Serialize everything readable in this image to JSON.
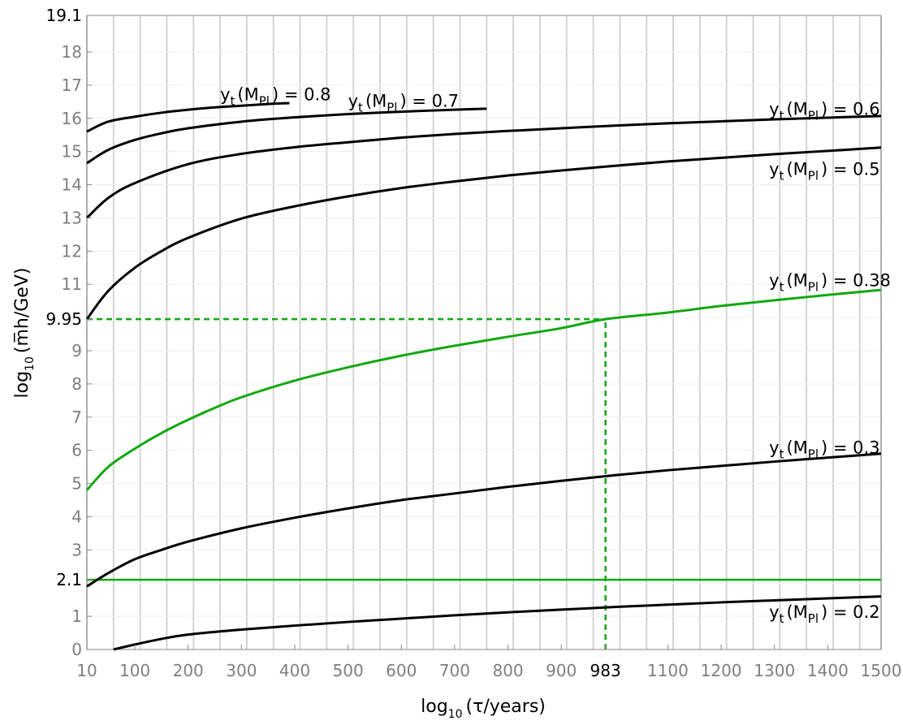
{
  "chart_data": {
    "type": "line",
    "xlabel": {
      "main": "log",
      "sub": "10",
      "rest": "(τ/years)"
    },
    "ylabel": {
      "main": "log",
      "sub": "10",
      "rest": "(m̅h/GeV)"
    },
    "xlim": [
      10,
      1500
    ],
    "ylim": [
      0,
      19.1
    ],
    "x_ticks": [
      {
        "value": 10,
        "label": "10"
      },
      {
        "value": 100,
        "label": "100"
      },
      {
        "value": 200,
        "label": "200"
      },
      {
        "value": 300,
        "label": "300"
      },
      {
        "value": 400,
        "label": "400"
      },
      {
        "value": 500,
        "label": "500"
      },
      {
        "value": 600,
        "label": "600"
      },
      {
        "value": 700,
        "label": "700"
      },
      {
        "value": 800,
        "label": "800"
      },
      {
        "value": 900,
        "label": "900"
      },
      {
        "value": 983,
        "label": "983",
        "highlight": true
      },
      {
        "value": 1100,
        "label": "1100"
      },
      {
        "value": 1200,
        "label": "1200"
      },
      {
        "value": 1300,
        "label": "1300"
      },
      {
        "value": 1400,
        "label": "1400"
      },
      {
        "value": 1500,
        "label": "1500"
      }
    ],
    "y_ticks": [
      {
        "value": 0,
        "label": "0"
      },
      {
        "value": 1,
        "label": "1"
      },
      {
        "value": 2.1,
        "label": "2.1",
        "highlight": true
      },
      {
        "value": 3,
        "label": "3"
      },
      {
        "value": 4,
        "label": "4"
      },
      {
        "value": 5,
        "label": "5"
      },
      {
        "value": 6,
        "label": "6"
      },
      {
        "value": 7,
        "label": "7"
      },
      {
        "value": 8,
        "label": "8"
      },
      {
        "value": 9,
        "label": "9"
      },
      {
        "value": 9.95,
        "label": "9.95",
        "highlight": true
      },
      {
        "value": 11,
        "label": "11"
      },
      {
        "value": 12,
        "label": "12"
      },
      {
        "value": 13,
        "label": "13"
      },
      {
        "value": 14,
        "label": "14"
      },
      {
        "value": 15,
        "label": "15"
      },
      {
        "value": 16,
        "label": "16"
      },
      {
        "value": 17,
        "label": "17"
      },
      {
        "value": 18,
        "label": "18"
      },
      {
        "value": 19.1,
        "label": "19.1",
        "highlight": true
      }
    ],
    "vertical_grid_x": [
      10,
      60,
      110,
      160,
      210,
      260,
      310,
      360,
      410,
      460,
      510,
      560,
      610,
      660,
      710,
      760,
      810,
      860,
      910,
      960,
      1010,
      1060,
      1110,
      1160,
      1210,
      1260,
      1310,
      1360,
      1410,
      1460,
      1500
    ],
    "horizontal_grid_y": [
      1,
      2,
      3,
      4,
      5,
      6,
      7,
      8,
      9,
      10,
      11,
      12,
      13,
      14,
      15,
      16,
      17,
      18
    ],
    "grid": true,
    "colors": {
      "black": "#000000",
      "green": "#11a811",
      "grid": "#d4d4d4",
      "tick": "#7f7f7f"
    },
    "series": [
      {
        "name": "y_t(M_Pl) = 0.8",
        "label": {
          "pre": "y",
          "sub1": "t",
          "mid": "(M",
          "sub2": "Pl",
          "post": ") = 0.8"
        },
        "label_anchor": [
          260,
          16.55
        ],
        "color": "#000000",
        "x": [
          10,
          50,
          100,
          150,
          200,
          250,
          300,
          350,
          390
        ],
        "y": [
          15.6,
          15.9,
          16.05,
          16.17,
          16.26,
          16.33,
          16.38,
          16.43,
          16.46
        ]
      },
      {
        "name": "y_t(M_Pl) = 0.7",
        "label": {
          "pre": "y",
          "sub1": "t",
          "mid": "(M",
          "sub2": "Pl",
          "post": ") = 0.7"
        },
        "label_anchor": [
          500,
          16.35
        ],
        "color": "#000000",
        "x": [
          10,
          50,
          100,
          150,
          200,
          300,
          400,
          500,
          600,
          700,
          760
        ],
        "y": [
          14.65,
          15.05,
          15.35,
          15.55,
          15.7,
          15.9,
          16.03,
          16.13,
          16.2,
          16.26,
          16.29
        ]
      },
      {
        "name": "y_t(M_Pl) = 0.6",
        "label": {
          "pre": "y",
          "sub1": "t",
          "mid": "(M",
          "sub2": "Pl",
          "post": ") = 0.6"
        },
        "label_anchor": [
          1290,
          16.1
        ],
        "color": "#000000",
        "x": [
          10,
          50,
          100,
          200,
          300,
          400,
          500,
          600,
          700,
          800,
          900,
          1000,
          1100,
          1200,
          1300,
          1400,
          1500
        ],
        "y": [
          13.0,
          13.6,
          14.05,
          14.62,
          14.93,
          15.13,
          15.28,
          15.42,
          15.53,
          15.62,
          15.7,
          15.78,
          15.85,
          15.91,
          15.97,
          16.02,
          16.07
        ]
      },
      {
        "name": "y_t(M_Pl) = 0.5",
        "label": {
          "pre": "y",
          "sub1": "t",
          "mid": "(M",
          "sub2": "Pl",
          "post": ") = 0.5"
        },
        "label_anchor": [
          1290,
          14.3
        ],
        "color": "#000000",
        "x": [
          10,
          50,
          100,
          150,
          200,
          300,
          400,
          500,
          600,
          700,
          800,
          900,
          1000,
          1100,
          1200,
          1300,
          1400,
          1500
        ],
        "y": [
          9.95,
          10.8,
          11.5,
          12.0,
          12.4,
          12.98,
          13.35,
          13.65,
          13.9,
          14.1,
          14.28,
          14.43,
          14.57,
          14.7,
          14.81,
          14.92,
          15.02,
          15.12
        ]
      },
      {
        "name": "y_t(M_Pl) = 0.38",
        "label": {
          "pre": "y",
          "sub1": "t",
          "mid": "(M",
          "sub2": "Pl",
          "post": ") = 0.38"
        },
        "label_anchor": [
          1290,
          10.95
        ],
        "color": "#11a811",
        "x": [
          10,
          50,
          100,
          150,
          200,
          250,
          300,
          400,
          500,
          600,
          700,
          800,
          900,
          983,
          1100,
          1200,
          1300,
          1400,
          1500
        ],
        "y": [
          4.8,
          5.5,
          6.05,
          6.52,
          6.92,
          7.28,
          7.6,
          8.1,
          8.5,
          8.85,
          9.15,
          9.42,
          9.68,
          9.95,
          10.15,
          10.35,
          10.52,
          10.68,
          10.83
        ]
      },
      {
        "name": "y_t(M_Pl) = 0.3",
        "label": {
          "pre": "y",
          "sub1": "t",
          "mid": "(M",
          "sub2": "Pl",
          "post": ") = 0.3"
        },
        "label_anchor": [
          1290,
          5.9
        ],
        "color": "#000000",
        "x": [
          10,
          50,
          100,
          150,
          200,
          300,
          400,
          500,
          600,
          700,
          800,
          900,
          1000,
          1100,
          1200,
          1300,
          1400,
          1500
        ],
        "y": [
          1.9,
          2.3,
          2.72,
          3.0,
          3.25,
          3.65,
          3.97,
          4.25,
          4.5,
          4.7,
          4.9,
          5.08,
          5.25,
          5.4,
          5.53,
          5.66,
          5.78,
          5.9
        ]
      },
      {
        "name": "y_t(M_Pl) = 0.2",
        "label": {
          "pre": "y",
          "sub1": "t",
          "mid": "(M",
          "sub2": "Pl",
          "post": ") = 0.2"
        },
        "label_anchor": [
          1290,
          0.95
        ],
        "color": "#000000",
        "x": [
          60,
          100,
          150,
          200,
          300,
          400,
          500,
          600,
          700,
          800,
          900,
          1000,
          1100,
          1200,
          1300,
          1400,
          1500
        ],
        "y": [
          0.0,
          0.15,
          0.32,
          0.45,
          0.6,
          0.72,
          0.83,
          0.93,
          1.03,
          1.12,
          1.2,
          1.28,
          1.35,
          1.42,
          1.48,
          1.54,
          1.6
        ]
      }
    ],
    "reference_lines": [
      {
        "kind": "horizontal",
        "y": 2.1,
        "color": "#11a811",
        "style": "solid"
      },
      {
        "kind": "horizontal",
        "y": 9.95,
        "x_range": [
          10,
          983
        ],
        "color": "#11a811",
        "style": "dashed"
      },
      {
        "kind": "vertical",
        "x": 983,
        "y_range": [
          0,
          9.95
        ],
        "color": "#11a811",
        "style": "dashed"
      }
    ]
  }
}
